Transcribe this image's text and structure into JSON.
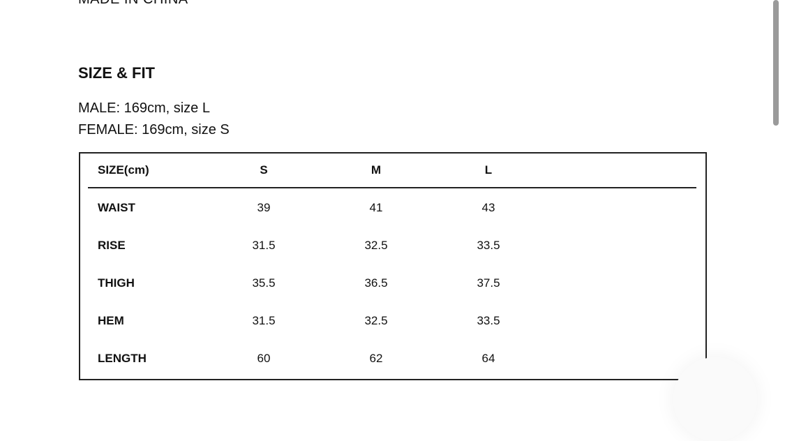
{
  "top_text": "MADE IN CHINA",
  "section": {
    "title": "SIZE & FIT",
    "lines": [
      "MALE: 169cm, size L",
      "FEMALE: 169cm, size S"
    ]
  },
  "table": {
    "header": [
      "SIZE(cm)",
      "S",
      "M",
      "L"
    ],
    "rows": [
      [
        "WAIST",
        39,
        41,
        43
      ],
      [
        "RISE",
        31.5,
        32.5,
        33.5
      ],
      [
        "THIGH",
        35.5,
        36.5,
        37.5
      ],
      [
        "HEM",
        31.5,
        32.5,
        33.5
      ],
      [
        "LENGTH",
        60,
        62,
        64
      ]
    ]
  }
}
